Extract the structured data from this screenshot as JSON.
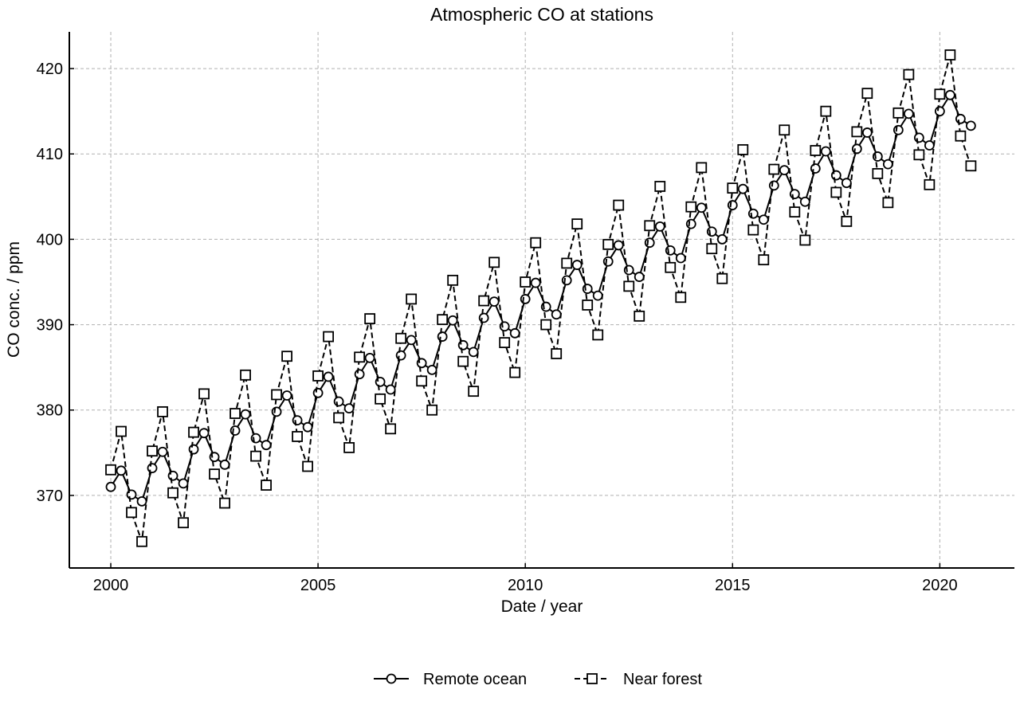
{
  "chart_data": {
    "type": "line",
    "title": "Atmospheric CO  at stations",
    "xlabel": "Date / year",
    "ylabel": "CO  conc. / ppm",
    "xlim": [
      1999.0,
      2021.8
    ],
    "ylim": [
      361.5,
      424.3
    ],
    "xticks": [
      2000,
      2005,
      2010,
      2015,
      2020
    ],
    "yticks": [
      370,
      380,
      390,
      400,
      410,
      420
    ],
    "grid": true,
    "legend_position": "bottom-center",
    "x": [
      2000.0,
      2000.25,
      2000.5,
      2000.75,
      2001.0,
      2001.25,
      2001.5,
      2001.75,
      2002.0,
      2002.25,
      2002.5,
      2002.75,
      2003.0,
      2003.25,
      2003.5,
      2003.75,
      2004.0,
      2004.25,
      2004.5,
      2004.75,
      2005.0,
      2005.25,
      2005.5,
      2005.75,
      2006.0,
      2006.25,
      2006.5,
      2006.75,
      2007.0,
      2007.25,
      2007.5,
      2007.75,
      2008.0,
      2008.25,
      2008.5,
      2008.75,
      2009.0,
      2009.25,
      2009.5,
      2009.75,
      2010.0,
      2010.25,
      2010.5,
      2010.75,
      2011.0,
      2011.25,
      2011.5,
      2011.75,
      2012.0,
      2012.25,
      2012.5,
      2012.75,
      2013.0,
      2013.25,
      2013.5,
      2013.75,
      2014.0,
      2014.25,
      2014.5,
      2014.75,
      2015.0,
      2015.25,
      2015.5,
      2015.75,
      2016.0,
      2016.25,
      2016.5,
      2016.75,
      2017.0,
      2017.25,
      2017.5,
      2017.75,
      2018.0,
      2018.25,
      2018.5,
      2018.75,
      2019.0,
      2019.25,
      2019.5,
      2019.75,
      2020.0,
      2020.25,
      2020.5,
      2020.75
    ],
    "series": [
      {
        "name": "Remote ocean",
        "marker": "circle",
        "line_style": "solid",
        "color": "#000000",
        "values": [
          371.0,
          372.9,
          370.1,
          369.3,
          373.2,
          375.1,
          372.3,
          371.4,
          375.4,
          377.3,
          374.5,
          373.6,
          377.6,
          379.5,
          376.7,
          375.9,
          379.8,
          381.7,
          378.8,
          378.0,
          382.0,
          383.9,
          381.0,
          380.2,
          384.2,
          386.1,
          383.3,
          382.4,
          386.4,
          388.2,
          385.5,
          384.7,
          388.6,
          390.5,
          387.6,
          386.8,
          390.8,
          392.7,
          389.8,
          389.0,
          393.0,
          394.9,
          392.1,
          391.2,
          395.2,
          397.0,
          394.2,
          393.4,
          397.4,
          399.3,
          396.4,
          395.6,
          399.6,
          401.5,
          398.7,
          397.8,
          401.8,
          403.7,
          400.9,
          400.0,
          404.0,
          405.9,
          403.0,
          402.3,
          406.3,
          408.1,
          405.3,
          404.4,
          408.3,
          410.3,
          407.5,
          406.6,
          410.6,
          412.5,
          409.7,
          408.8,
          412.8,
          414.7,
          411.9,
          411.0,
          415.0,
          416.9,
          414.1,
          413.3
        ]
      },
      {
        "name": "Near forest",
        "marker": "square",
        "line_style": "dashed",
        "color": "#000000",
        "values": [
          373.0,
          377.5,
          368.0,
          364.6,
          375.2,
          379.8,
          370.3,
          366.8,
          377.4,
          381.9,
          372.5,
          369.1,
          379.6,
          384.1,
          374.6,
          371.2,
          381.8,
          386.3,
          376.9,
          373.4,
          384.0,
          388.6,
          379.1,
          375.6,
          386.2,
          390.7,
          381.3,
          377.8,
          388.4,
          393.0,
          383.4,
          380.0,
          390.6,
          395.2,
          385.7,
          382.2,
          392.8,
          397.3,
          387.9,
          384.4,
          395.0,
          399.6,
          390.0,
          386.6,
          397.2,
          401.8,
          392.3,
          388.8,
          399.4,
          404.0,
          394.5,
          391.0,
          401.6,
          406.2,
          396.7,
          393.2,
          403.8,
          408.4,
          398.9,
          395.4,
          406.0,
          410.5,
          401.1,
          397.6,
          408.2,
          412.8,
          403.2,
          399.9,
          410.4,
          415.0,
          405.5,
          402.1,
          412.6,
          417.1,
          407.7,
          404.3,
          414.8,
          419.3,
          409.9,
          406.4,
          417.0,
          421.6,
          412.1,
          408.6
        ]
      }
    ]
  }
}
